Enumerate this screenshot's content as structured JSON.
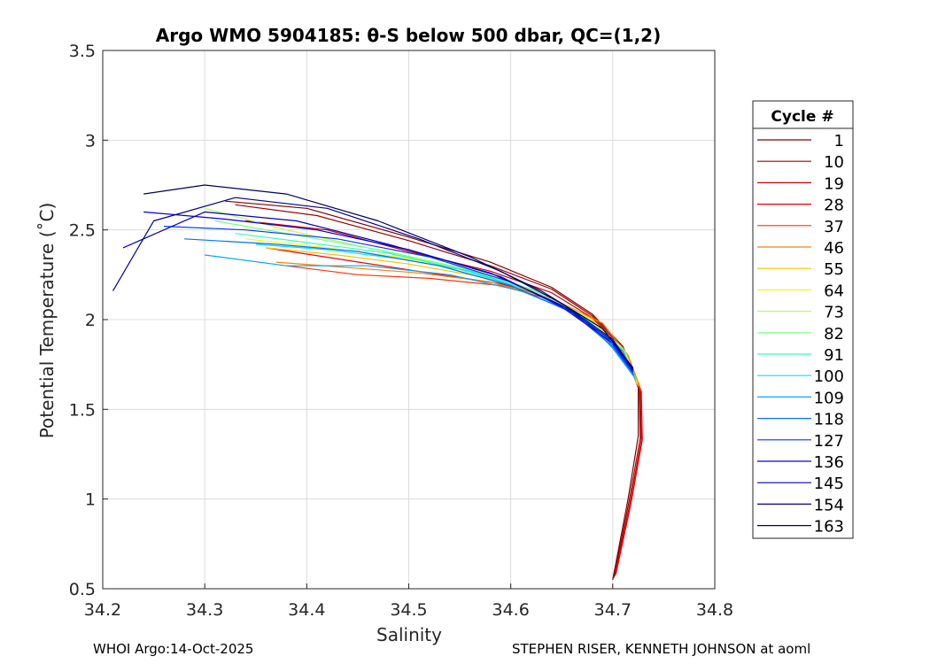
{
  "chart_data": {
    "type": "line",
    "title": "Argo WMO 5904185: θ-S below 500 dbar,  QC=(1,2)",
    "xlabel": "Salinity",
    "ylabel": "Potential Temperature (˚C)",
    "xlim": [
      34.2,
      34.8
    ],
    "ylim": [
      0.5,
      3.5
    ],
    "xticks": [
      34.2,
      34.3,
      34.4,
      34.5,
      34.6,
      34.7,
      34.8
    ],
    "yticks": [
      0.5,
      1,
      1.5,
      2,
      2.5,
      3,
      3.5
    ],
    "xtick_labels": [
      "34.2",
      "34.3",
      "34.4",
      "34.5",
      "34.6",
      "34.7",
      "34.8"
    ],
    "ytick_labels": [
      "0.5",
      "1",
      "1.5",
      "2",
      "2.5",
      "3",
      "3.5"
    ],
    "grid": true,
    "legend": {
      "title": "Cycle #",
      "placement": "outside-right",
      "entries": [
        {
          "label": "1",
          "color": "#800000"
        },
        {
          "label": "10",
          "color": "#a00000"
        },
        {
          "label": "19",
          "color": "#c80000"
        },
        {
          "label": "28",
          "color": "#ee0000"
        },
        {
          "label": "37",
          "color": "#ff3300"
        },
        {
          "label": "46",
          "color": "#ff8000"
        },
        {
          "label": "55",
          "color": "#ffc000"
        },
        {
          "label": "64",
          "color": "#f8f800"
        },
        {
          "label": "73",
          "color": "#b8ff48"
        },
        {
          "label": "82",
          "color": "#70ff80"
        },
        {
          "label": "91",
          "color": "#30ffc0"
        },
        {
          "label": "100",
          "color": "#00e0ff"
        },
        {
          "label": "109",
          "color": "#00a8ff"
        },
        {
          "label": "118",
          "color": "#0070ff"
        },
        {
          "label": "127",
          "color": "#0038ff"
        },
        {
          "label": "136",
          "color": "#0000e8"
        },
        {
          "label": "145",
          "color": "#0000b8"
        },
        {
          "label": "154",
          "color": "#000090"
        },
        {
          "label": "163",
          "color": "#000060"
        }
      ]
    },
    "series": [
      {
        "name": "1",
        "x": [
          34.32,
          34.4,
          34.5,
          34.58,
          34.64,
          34.68,
          34.71,
          34.725,
          34.725,
          34.715,
          34.7
        ],
        "y": [
          2.66,
          2.62,
          2.46,
          2.32,
          2.18,
          2.03,
          1.85,
          1.62,
          1.35,
          1.0,
          0.55
        ]
      },
      {
        "name": "10",
        "x": [
          34.33,
          34.41,
          34.5,
          34.58,
          34.64,
          34.68,
          34.71,
          34.726,
          34.727,
          34.716,
          34.701
        ],
        "y": [
          2.64,
          2.58,
          2.44,
          2.3,
          2.17,
          2.02,
          1.84,
          1.61,
          1.34,
          0.99,
          0.56
        ]
      },
      {
        "name": "19",
        "x": [
          34.34,
          34.42,
          34.5,
          34.58,
          34.64,
          34.68,
          34.71,
          34.727,
          34.728,
          34.717,
          34.702
        ],
        "y": [
          2.55,
          2.5,
          2.38,
          2.27,
          2.15,
          2.01,
          1.83,
          1.6,
          1.33,
          0.98,
          0.57
        ]
      },
      {
        "name": "28",
        "x": [
          34.36,
          34.44,
          34.52,
          34.59,
          34.64,
          34.68,
          34.71,
          34.728,
          34.729,
          34.718,
          34.703
        ],
        "y": [
          2.4,
          2.33,
          2.26,
          2.2,
          2.12,
          2.0,
          1.82,
          1.6,
          1.33,
          0.98,
          0.58
        ]
      },
      {
        "name": "37",
        "x": [
          34.38,
          34.45,
          34.52,
          34.59,
          34.64,
          34.69,
          34.715,
          34.728
        ],
        "y": [
          2.3,
          2.25,
          2.23,
          2.19,
          2.11,
          1.98,
          1.8,
          1.6
        ]
      },
      {
        "name": "46",
        "x": [
          34.37,
          34.44,
          34.51,
          34.58,
          34.64,
          34.69,
          34.715,
          34.727
        ],
        "y": [
          2.32,
          2.29,
          2.26,
          2.21,
          2.12,
          1.98,
          1.8,
          1.62
        ]
      },
      {
        "name": "55",
        "x": [
          34.36,
          34.43,
          34.5,
          34.57,
          34.63,
          34.68,
          34.713,
          34.725
        ],
        "y": [
          2.4,
          2.36,
          2.31,
          2.24,
          2.14,
          1.99,
          1.81,
          1.63
        ]
      },
      {
        "name": "64",
        "x": [
          34.34,
          34.42,
          34.5,
          34.57,
          34.63,
          34.68,
          34.712,
          34.724
        ],
        "y": [
          2.45,
          2.4,
          2.34,
          2.26,
          2.15,
          2.0,
          1.82,
          1.64
        ]
      },
      {
        "name": "73",
        "x": [
          34.3,
          34.38,
          34.46,
          34.54,
          34.61,
          34.67,
          34.71,
          34.724
        ],
        "y": [
          2.62,
          2.5,
          2.4,
          2.3,
          2.19,
          2.03,
          1.84,
          1.65
        ]
      },
      {
        "name": "82",
        "x": [
          34.31,
          34.39,
          34.47,
          34.55,
          34.62,
          34.67,
          34.71,
          34.723
        ],
        "y": [
          2.55,
          2.47,
          2.39,
          2.29,
          2.17,
          2.02,
          1.83,
          1.66
        ]
      },
      {
        "name": "91",
        "x": [
          34.33,
          34.4,
          34.48,
          34.55,
          34.62,
          34.67,
          34.71,
          34.723
        ],
        "y": [
          2.48,
          2.43,
          2.37,
          2.28,
          2.16,
          2.02,
          1.83,
          1.66
        ]
      },
      {
        "name": "100",
        "x": [
          34.35,
          34.42,
          34.49,
          34.56,
          34.62,
          34.67,
          34.71,
          34.722
        ],
        "y": [
          2.42,
          2.39,
          2.34,
          2.27,
          2.16,
          2.01,
          1.83,
          1.67
        ]
      },
      {
        "name": "109",
        "x": [
          34.3,
          34.38,
          34.46,
          34.54,
          34.61,
          34.67,
          34.7,
          34.721
        ],
        "y": [
          2.36,
          2.3,
          2.3,
          2.25,
          2.16,
          2.02,
          1.84,
          1.68
        ]
      },
      {
        "name": "118",
        "x": [
          34.28,
          34.37,
          34.45,
          34.53,
          34.6,
          34.66,
          34.7,
          34.721
        ],
        "y": [
          2.45,
          2.42,
          2.38,
          2.3,
          2.19,
          2.04,
          1.85,
          1.69
        ]
      },
      {
        "name": "127",
        "x": [
          34.26,
          34.34,
          34.43,
          34.52,
          34.6,
          34.66,
          34.7,
          34.72
        ],
        "y": [
          2.52,
          2.5,
          2.45,
          2.35,
          2.21,
          2.05,
          1.86,
          1.7
        ]
      },
      {
        "name": "136",
        "x": [
          34.24,
          34.32,
          34.41,
          34.5,
          34.59,
          34.65,
          34.7,
          34.72
        ],
        "y": [
          2.6,
          2.56,
          2.5,
          2.39,
          2.24,
          2.07,
          1.87,
          1.71
        ]
      },
      {
        "name": "145",
        "x": [
          34.22,
          34.3,
          34.39,
          34.48,
          34.58,
          34.65,
          34.7,
          34.72
        ],
        "y": [
          2.4,
          2.6,
          2.55,
          2.42,
          2.26,
          2.08,
          1.88,
          1.72
        ]
      },
      {
        "name": "154",
        "x": [
          34.21,
          34.25,
          34.33,
          34.42,
          34.51,
          34.59,
          34.65,
          34.7,
          34.72
        ],
        "y": [
          2.16,
          2.55,
          2.68,
          2.62,
          2.45,
          2.27,
          2.09,
          1.89,
          1.72
        ]
      },
      {
        "name": "163",
        "x": [
          34.24,
          34.3,
          34.38,
          34.47,
          34.56,
          34.63,
          34.69,
          34.72
        ],
        "y": [
          2.7,
          2.75,
          2.7,
          2.55,
          2.35,
          2.16,
          1.95,
          1.73
        ]
      }
    ]
  },
  "footer": {
    "left": "WHOI Argo:14-Oct-2025",
    "right": "STEPHEN RISER, KENNETH JOHNSON at aoml"
  }
}
